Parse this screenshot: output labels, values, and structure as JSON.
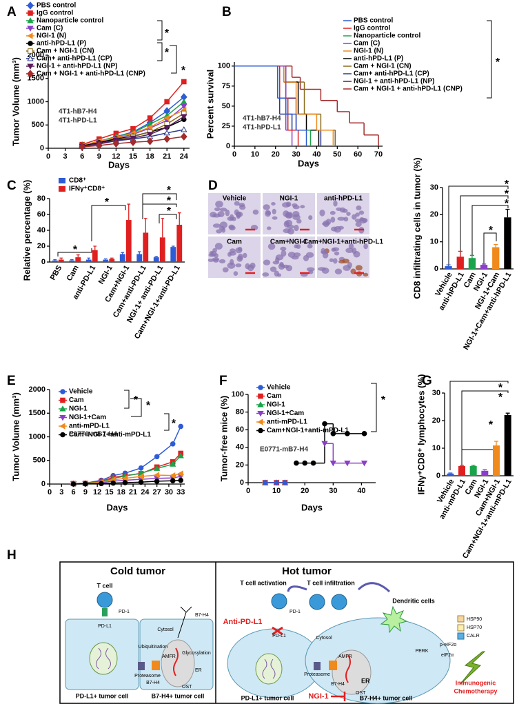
{
  "panel_labels": [
    "A",
    "B",
    "C",
    "D",
    "E",
    "F",
    "G",
    "H"
  ],
  "micrographs": [
    "Vehicle",
    "NGI-1",
    "anti-hPD-L1",
    "Cam",
    "Cam+NGI-1",
    "Cam+NGI-1+anti-hPD-L1"
  ],
  "chart_data": [
    {
      "type": "line",
      "ylabel": "Tumor Volume (mm³)",
      "xlabel": "Days",
      "x": [
        6,
        9,
        12,
        15,
        18,
        21,
        24
      ],
      "xlim": [
        0,
        25
      ],
      "xticks": [
        0,
        3,
        6,
        9,
        12,
        15,
        18,
        21,
        24
      ],
      "ylim": [
        0,
        2000
      ],
      "yticks": [
        0,
        500,
        1000,
        1500,
        2000
      ],
      "annotations": [
        "4T1-hB7-H4",
        "4T1-hPD-L1"
      ],
      "significance": [
        "*",
        "*",
        "*"
      ],
      "series": [
        {
          "name": "PBS control",
          "color": "#2e5bd6",
          "marker": "diamond",
          "values": [
            60,
            150,
            250,
            350,
            550,
            800,
            1100
          ]
        },
        {
          "name": "IgG control",
          "color": "#e02020",
          "marker": "square",
          "values": [
            80,
            200,
            320,
            420,
            650,
            1000,
            1430
          ]
        },
        {
          "name": "Nanoparticle control",
          "color": "#1aa34a",
          "marker": "triangle",
          "values": [
            60,
            150,
            250,
            330,
            520,
            700,
            1000
          ]
        },
        {
          "name": "Cam (C)",
          "color": "#8b3fc6",
          "marker": "triangle-down",
          "values": [
            50,
            130,
            220,
            300,
            430,
            600,
            900
          ]
        },
        {
          "name": "NGI-1 (N)",
          "color": "#f08a1c",
          "marker": "triangle-left",
          "values": [
            60,
            150,
            230,
            320,
            450,
            650,
            820
          ]
        },
        {
          "name": "anti-hPD-L1 (P)",
          "color": "#000000",
          "marker": "circle",
          "values": [
            50,
            120,
            200,
            260,
            350,
            450,
            620
          ]
        },
        {
          "name": "Cam + NGI-1 (CN)",
          "color": "#8b6b1a",
          "marker": "square-open",
          "values": [
            40,
            100,
            180,
            250,
            350,
            520,
            750
          ]
        },
        {
          "name": "Cam+ anti-hPD-L1 (CP)",
          "color": "#2a3a8c",
          "marker": "triangle-open",
          "values": [
            40,
            90,
            160,
            200,
            250,
            330,
            400
          ]
        },
        {
          "name": "NGI-1 + anti-hPD-L1 (NP)",
          "color": "#5a1a5a",
          "marker": "triangle-down",
          "values": [
            40,
            100,
            170,
            220,
            300,
            450,
            680
          ]
        },
        {
          "name": "Cam + NGI-1 + anti-hPD-L1 (CNP)",
          "color": "#a52a2a",
          "marker": "diamond",
          "values": [
            30,
            60,
            100,
            130,
            150,
            200,
            250
          ]
        }
      ]
    },
    {
      "type": "step",
      "ylabel": "Percent survival",
      "xlabel": "Days",
      "xlim": [
        0,
        72
      ],
      "xticks": [
        0,
        10,
        20,
        30,
        40,
        50,
        60,
        70
      ],
      "ylim": [
        0,
        105
      ],
      "yticks": [
        0,
        25,
        50,
        75,
        100
      ],
      "annotations": [
        "4T1-hB7-H4",
        "4T1-hPD-L1"
      ],
      "significance": [
        "*"
      ],
      "series": [
        {
          "name": "PBS control",
          "color": "#2e5bd6",
          "x": [
            0,
            21,
            25,
            30,
            35
          ],
          "values": [
            100,
            60,
            40,
            20,
            0
          ]
        },
        {
          "name": "IgG control",
          "color": "#e02020",
          "x": [
            0,
            22,
            26,
            31
          ],
          "values": [
            100,
            60,
            20,
            0
          ]
        },
        {
          "name": "Nanoparticle control",
          "color": "#1aa34a",
          "x": [
            0,
            21,
            26,
            37
          ],
          "values": [
            100,
            60,
            20,
            0
          ]
        },
        {
          "name": "Cam (C)",
          "color": "#8b3fc6",
          "x": [
            0,
            25,
            28
          ],
          "values": [
            100,
            20,
            0
          ]
        },
        {
          "name": "NGI-1 (N)",
          "color": "#f08a1c",
          "x": [
            0,
            24,
            30,
            40,
            48
          ],
          "values": [
            100,
            80,
            40,
            20,
            0
          ]
        },
        {
          "name": "anti-hPD-L1 (P)",
          "color": "#000000",
          "x": [
            0,
            24,
            31,
            35,
            41
          ],
          "values": [
            100,
            80,
            40,
            20,
            0
          ]
        },
        {
          "name": "Cam + NGI-1 (CN)",
          "color": "#8b6b1a",
          "x": [
            0,
            25,
            34,
            42,
            49
          ],
          "values": [
            100,
            80,
            40,
            20,
            0
          ]
        },
        {
          "name": "Cam+ anti-hPD-L1 (CP)",
          "color": "#2a3a8c",
          "x": [
            0,
            22,
            28,
            42
          ],
          "values": [
            100,
            40,
            20,
            0
          ]
        },
        {
          "name": "NGI-1 + anti-hPD-L1 (NP)",
          "color": "#5a1a5a",
          "x": [
            0,
            25,
            30,
            49
          ],
          "values": [
            100,
            60,
            20,
            0
          ]
        },
        {
          "name": "Cam + NGI-1 + anti-hPD-L1 (CNP)",
          "color": "#a52a2a",
          "x": [
            0,
            28,
            32,
            42,
            50,
            56,
            63,
            70
          ],
          "values": [
            100,
            86,
            71,
            57,
            43,
            29,
            14,
            0
          ]
        }
      ]
    },
    {
      "type": "bar",
      "ylabel": "Relative percentage  (%)",
      "categories": [
        "PBS",
        "Cam",
        "anti-PD-L1",
        "NGI-1",
        "Cam+NGI-1",
        "Cam+anti-PD-L1",
        "NGI-1+ anti-PD-L1",
        "Cam+NGI-1+anti-PD-L1"
      ],
      "ylim": [
        0,
        80
      ],
      "yticks": [
        0,
        20,
        40,
        60,
        80
      ],
      "significance": [
        "*",
        "*",
        "*",
        "*",
        "*"
      ],
      "series": [
        {
          "name": "CD8⁺",
          "color": "#2e5bd6",
          "values": [
            2,
            2,
            3,
            3,
            10,
            10,
            6,
            19
          ],
          "errors": [
            1,
            1,
            2,
            1,
            2,
            3,
            1,
            1
          ]
        },
        {
          "name": "IFNγ⁺CD8⁺",
          "color": "#e02020",
          "values": [
            3,
            6,
            15,
            4,
            53,
            37,
            31,
            47
          ],
          "errors": [
            2,
            3,
            5,
            1,
            20,
            18,
            24,
            15
          ]
        }
      ]
    },
    {
      "type": "bar",
      "ylabel": "CD8 infiltrating cells in tumor  (%)",
      "categories": [
        "Vehicle",
        "anti-hPD-L1",
        "Cam",
        "NGI-1",
        "NGI-1+Cam",
        "NGI-1+Cam+anti-hPD-L1"
      ],
      "values": [
        1,
        4.5,
        4,
        1.5,
        8,
        19
      ],
      "errors": [
        0.5,
        2,
        1,
        0.3,
        1,
        3
      ],
      "colors": [
        "#2e5bd6",
        "#e02020",
        "#1aa34a",
        "#8b3fc6",
        "#f08a1c",
        "#000000"
      ],
      "ylim": [
        0,
        30
      ],
      "yticks": [
        0,
        10,
        20,
        30
      ],
      "significance": [
        "*",
        "*",
        "*",
        "*"
      ]
    },
    {
      "type": "line",
      "ylabel": "Tumor Volume (mm³)",
      "xlabel": "Days",
      "x": [
        6,
        9,
        13,
        16,
        19,
        23,
        27,
        31,
        33
      ],
      "xlim": [
        0,
        34
      ],
      "xticks": [
        0,
        3,
        6,
        9,
        12,
        15,
        18,
        21,
        24,
        27,
        30,
        33
      ],
      "ylim": [
        0,
        2000
      ],
      "yticks": [
        0,
        500,
        1000,
        1500,
        2000
      ],
      "annotations": [
        "E0771-mB7-H4"
      ],
      "significance": [
        "*",
        "*",
        "*"
      ],
      "series": [
        {
          "name": "Vehicle",
          "color": "#2e5bd6",
          "marker": "circle",
          "values": [
            10,
            20,
            80,
            180,
            230,
            340,
            580,
            850,
            1220
          ]
        },
        {
          "name": "Cam",
          "color": "#e02020",
          "marker": "square",
          "values": [
            10,
            15,
            60,
            140,
            180,
            220,
            360,
            470,
            650
          ]
        },
        {
          "name": "NGI-1",
          "color": "#1aa34a",
          "marker": "triangle",
          "values": [
            10,
            15,
            50,
            120,
            170,
            230,
            330,
            420,
            600
          ]
        },
        {
          "name": "NGI-1+Cam",
          "color": "#8b3fc6",
          "marker": "triangle-down",
          "values": [
            5,
            10,
            30,
            60,
            80,
            100,
            120,
            130,
            160
          ]
        },
        {
          "name": "anti-mPD-L1",
          "color": "#f08a1c",
          "marker": "triangle-left",
          "values": [
            5,
            10,
            40,
            90,
            120,
            160,
            190,
            180,
            220
          ]
        },
        {
          "name": "Cam+NGI-1+anti-mPD-L1",
          "color": "#000000",
          "marker": "circle",
          "values": [
            0,
            5,
            10,
            20,
            30,
            40,
            60,
            70,
            80
          ]
        }
      ]
    },
    {
      "type": "step",
      "ylabel": "Tumor-free mice (%)",
      "xlabel": "Days",
      "xlim": [
        0,
        45
      ],
      "xticks": [
        0,
        10,
        20,
        30,
        40
      ],
      "ylim": [
        0,
        100
      ],
      "yticks": [
        0,
        20,
        40,
        60,
        80,
        100
      ],
      "annotations": [
        "E0771-mB7-H4"
      ],
      "significance": [
        "*"
      ],
      "series": [
        {
          "name": "Vehicle",
          "color": "#2e5bd6",
          "marker": "circle",
          "x": [
            6,
            10,
            13
          ],
          "values": [
            0,
            0,
            0
          ]
        },
        {
          "name": "Cam",
          "color": "#e02020",
          "marker": "square",
          "x": [
            6,
            10,
            13
          ],
          "values": [
            0,
            0,
            0
          ]
        },
        {
          "name": "NGI-1",
          "color": "#1aa34a",
          "marker": "triangle",
          "x": [
            6,
            10,
            13
          ],
          "values": [
            0,
            0,
            0
          ]
        },
        {
          "name": "NGI-1+Cam",
          "color": "#8b3fc6",
          "marker": "triangle-down",
          "x": [
            27,
            30,
            35,
            41
          ],
          "values": [
            44.4,
            22.2,
            22.2,
            22.2
          ]
        },
        {
          "name": "anti-mPD-L1",
          "color": "#f08a1c",
          "marker": "triangle-left",
          "x": [
            6,
            10,
            13
          ],
          "values": [
            0,
            0,
            0
          ]
        },
        {
          "name": "Cam+NGI-1+anti-mPD-L1",
          "color": "#000000",
          "marker": "circle",
          "x": [
            17,
            20,
            23,
            27,
            30,
            35,
            41
          ],
          "values": [
            22.2,
            22.2,
            22.2,
            66.7,
            55.6,
            55.6,
            55.6
          ]
        }
      ]
    },
    {
      "type": "bar",
      "ylabel": "IFNγ⁺CD8⁺ lymphocytes  (%)",
      "categories": [
        "Vehicle",
        "anti-mPD-L1",
        "Cam",
        "NGI-1",
        "Cam+NGI-1",
        "Cam+NGI-1+anti-mPD-L1"
      ],
      "values": [
        0.8,
        3.5,
        3.5,
        1.8,
        11,
        22
      ],
      "errors": [
        0.2,
        0.3,
        0.3,
        0.4,
        1.5,
        0.7
      ],
      "colors": [
        "#2e5bd6",
        "#e02020",
        "#1aa34a",
        "#8b3fc6",
        "#f08a1c",
        "#000000"
      ],
      "ylim": [
        0,
        30
      ],
      "yticks": [
        0,
        10,
        20,
        30
      ],
      "significance": [
        "*",
        "*",
        "*"
      ]
    }
  ],
  "diagram": {
    "cold": {
      "title": "Cold tumor",
      "labels": [
        "T cell",
        "PD-1",
        "PD-L1",
        "Cytosol",
        "B7-H4",
        "Ubiquitination",
        "AMFR",
        "Proteasome",
        "Glycosylation",
        "ER",
        "B7-H4",
        "OST",
        "PD-L1+ tumor cell",
        "B7-H4+ tumor cell"
      ]
    },
    "hot": {
      "title": "Hot tumor",
      "labels": [
        "T cell activation",
        "T cell infiltration",
        "Dendritic cells",
        "Anti-PD-L1",
        "PD-1",
        "PD-L1",
        "Cytosol",
        "HSP90",
        "HSP70",
        "CALR",
        "p-eIF2α",
        "eIF2α",
        "PERK",
        "AMFR",
        "Proteasome",
        "B7-H4",
        "ER",
        "NGI-1",
        "OST",
        "Immunogenic",
        "Chemotherapy",
        "PD-L1+ tumor cell",
        "B7-H4+ tumor cell"
      ]
    }
  }
}
